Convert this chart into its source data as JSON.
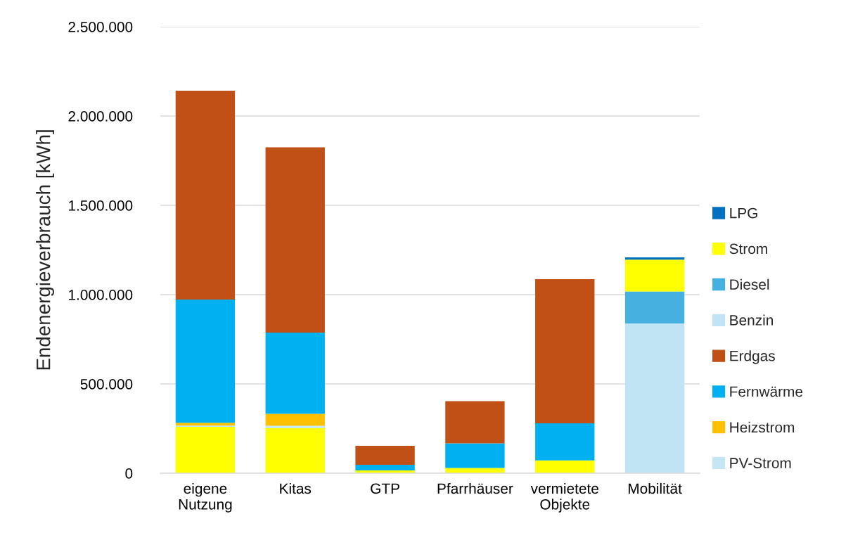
{
  "chart_data": {
    "type": "bar",
    "stacked": true,
    "ylabel": "Endenergieverbrauch [kWh]",
    "categories": [
      "eigene\nNutzung",
      "Kitas",
      "GTP",
      "Pfarrhäuser",
      "vermietete\nObjekte",
      "Mobilität"
    ],
    "series": [
      {
        "color": "#ffff00",
        "values": [
          260000,
          253000,
          16000,
          30000,
          72000,
          null
        ]
      },
      {
        "name": "PV-Strom",
        "color": "#c5e6f5",
        "values": [
          7000,
          13000,
          null,
          null,
          null,
          null
        ]
      },
      {
        "name": "Heizstrom",
        "color": "#ffc000",
        "values": [
          15000,
          67000,
          null,
          null,
          null,
          null
        ]
      },
      {
        "name": "Fernwärme",
        "color": "#00b0f0",
        "values": [
          690000,
          454000,
          31000,
          137000,
          208000,
          null
        ]
      },
      {
        "name": "Erdgas",
        "color": "#c05016",
        "values": [
          1170000,
          1038000,
          107000,
          237000,
          807000,
          null
        ]
      },
      {
        "name": "Benzin",
        "color": "#c1e4f5",
        "values": [
          null,
          null,
          null,
          null,
          null,
          839000
        ]
      },
      {
        "name": "Diesel",
        "color": "#46b0e0",
        "values": [
          null,
          null,
          null,
          null,
          null,
          179000
        ]
      },
      {
        "name": "Strom",
        "color": "#ffff00",
        "values": [
          null,
          null,
          null,
          null,
          null,
          178000
        ]
      },
      {
        "name": "LPG",
        "color": "#0070c0",
        "values": [
          null,
          null,
          null,
          null,
          null,
          13000
        ]
      }
    ],
    "ylim": [
      0,
      2500000
    ],
    "yticks": [
      {
        "value": 0,
        "label": "0"
      },
      {
        "value": 500000,
        "label": "500.000"
      },
      {
        "value": 1000000,
        "label": "1.000.000"
      },
      {
        "value": 1500000,
        "label": "1.500.000"
      },
      {
        "value": 2000000,
        "label": "2.000.000"
      },
      {
        "value": 2500000,
        "label": "2.500.000"
      }
    ],
    "grid": "y",
    "legend": "right"
  }
}
